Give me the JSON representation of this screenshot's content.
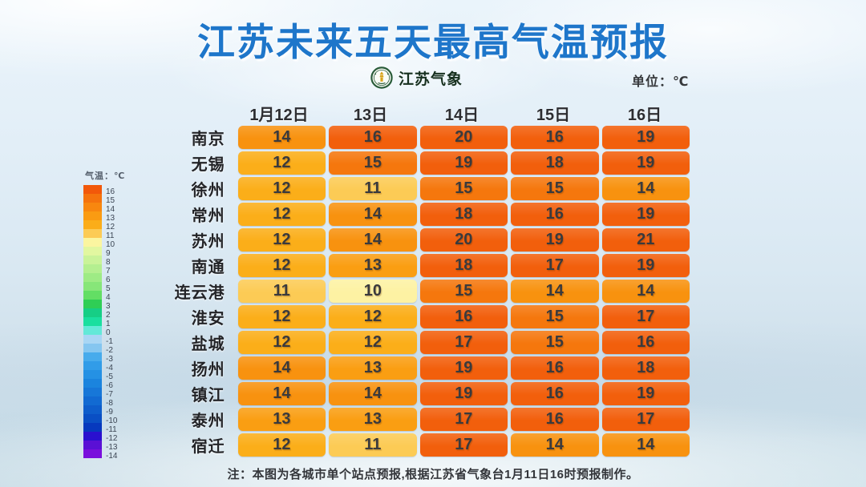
{
  "title": "江苏未来五天最高气温预报",
  "brand": {
    "logo": "jiangsu-meteorology-emblem",
    "name": "江苏气象"
  },
  "unit_label": "单位：℃",
  "legend": {
    "header": "气温：℃",
    "entries": [
      {
        "value": "16",
        "color": "#F2580A"
      },
      {
        "value": "15",
        "color": "#F5730D"
      },
      {
        "value": "14",
        "color": "#F8870F"
      },
      {
        "value": "13",
        "color": "#FA9B12"
      },
      {
        "value": "12",
        "color": "#FBAD19"
      },
      {
        "value": "11",
        "color": "#FCCB55"
      },
      {
        "value": "10",
        "color": "#FBF5A0"
      },
      {
        "value": "9",
        "color": "#E2F7A0"
      },
      {
        "value": "8",
        "color": "#CAF399"
      },
      {
        "value": "7",
        "color": "#B4EF90"
      },
      {
        "value": "6",
        "color": "#9EEB85"
      },
      {
        "value": "5",
        "color": "#87E679"
      },
      {
        "value": "4",
        "color": "#63DE64"
      },
      {
        "value": "3",
        "color": "#2FCE55"
      },
      {
        "value": "2",
        "color": "#16CE85"
      },
      {
        "value": "1",
        "color": "#1ADF9F"
      },
      {
        "value": "0",
        "color": "#63E9D8"
      },
      {
        "value": "-1",
        "color": "#A9D6F4"
      },
      {
        "value": "-2",
        "color": "#85C6F0"
      },
      {
        "value": "-3",
        "color": "#47ABEC"
      },
      {
        "value": "-4",
        "color": "#319CE8"
      },
      {
        "value": "-5",
        "color": "#2591E4"
      },
      {
        "value": "-6",
        "color": "#1B84DE"
      },
      {
        "value": "-7",
        "color": "#1777D8"
      },
      {
        "value": "-8",
        "color": "#126AD2"
      },
      {
        "value": "-9",
        "color": "#0E5DCB"
      },
      {
        "value": "-10",
        "color": "#0A4FC4"
      },
      {
        "value": "-11",
        "color": "#0739BE"
      },
      {
        "value": "-12",
        "color": "#2A10CF"
      },
      {
        "value": "-13",
        "color": "#5A10D5"
      },
      {
        "value": "-14",
        "color": "#7A0FDC"
      }
    ]
  },
  "temp_colors": {
    "10": "#FDF2A3",
    "11": "#FCCB55",
    "12": "#FBAE19",
    "13": "#FA9E12",
    "14": "#F8920F",
    "15": "#F5770D",
    "16": "#F25F0C"
  },
  "footer_note": "注：本图为各城市单个站点预报,根据江苏省气象台1月11日16时预报制作。",
  "chart_data": {
    "type": "heatmap",
    "title": "江苏未来五天最高气温预报",
    "unit": "℃",
    "columns": [
      "1月12日",
      "13日",
      "14日",
      "15日",
      "16日"
    ],
    "rows": [
      "南京",
      "无锡",
      "徐州",
      "常州",
      "苏州",
      "南通",
      "连云港",
      "淮安",
      "盐城",
      "扬州",
      "镇江",
      "泰州",
      "宿迁"
    ],
    "values": [
      [
        14,
        16,
        20,
        16,
        19
      ],
      [
        12,
        15,
        19,
        18,
        19
      ],
      [
        12,
        11,
        15,
        15,
        14
      ],
      [
        12,
        14,
        18,
        16,
        19
      ],
      [
        12,
        14,
        20,
        19,
        21
      ],
      [
        12,
        13,
        18,
        17,
        19
      ],
      [
        11,
        10,
        15,
        14,
        14
      ],
      [
        12,
        12,
        16,
        15,
        17
      ],
      [
        12,
        12,
        17,
        15,
        16
      ],
      [
        14,
        13,
        19,
        16,
        18
      ],
      [
        14,
        14,
        19,
        16,
        19
      ],
      [
        13,
        13,
        17,
        16,
        17
      ],
      [
        12,
        11,
        17,
        14,
        14
      ]
    ],
    "colorscale_range": [
      -14,
      16
    ],
    "legend_position": "left",
    "note": "注：本图为各城市单个站点预报,根据江苏省气象台1月11日16时预报制作。"
  }
}
